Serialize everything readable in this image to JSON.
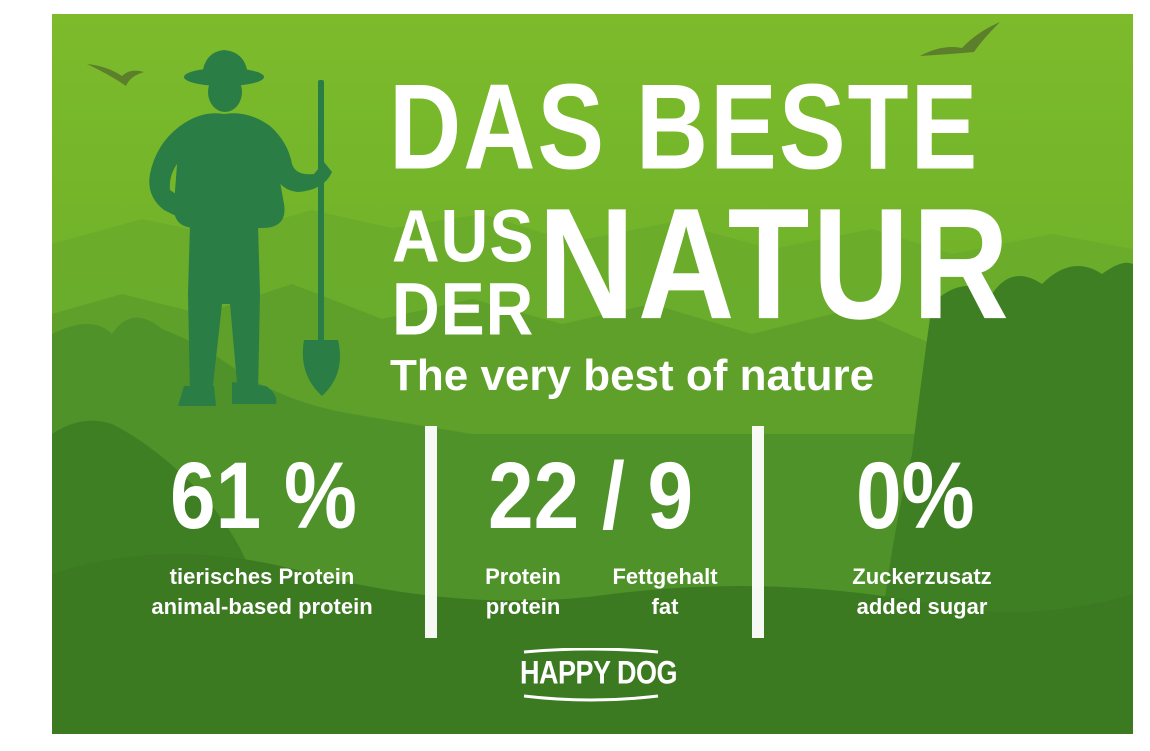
{
  "headline": {
    "line1": "DAS BESTE",
    "line2a": "AUS",
    "line2b": "DER",
    "line3": "NATUR",
    "tagline": "The very best of nature"
  },
  "stats": {
    "protein_animal": {
      "value": "61 %",
      "label_de": "tierisches Protein",
      "label_en": "animal-based protein"
    },
    "protein_fat": {
      "value": "22 / 9",
      "protein_de": "Protein",
      "protein_en": "protein",
      "fat_de": "Fettgehalt",
      "fat_en": "fat"
    },
    "sugar": {
      "value": "0%",
      "label_de": "Zuckerzusatz",
      "label_en": "added sugar"
    }
  },
  "brand": {
    "logo_text": "HAPPY DOG"
  },
  "colors": {
    "sky_top": "#7cbb2a",
    "sky_mid": "#5aa22a",
    "forest_dark": "#3d7a22",
    "figure": "#2a7a42",
    "text": "#ffffff"
  },
  "icons": [
    "farmer-illustration",
    "bird-icon",
    "shovel-icon"
  ]
}
